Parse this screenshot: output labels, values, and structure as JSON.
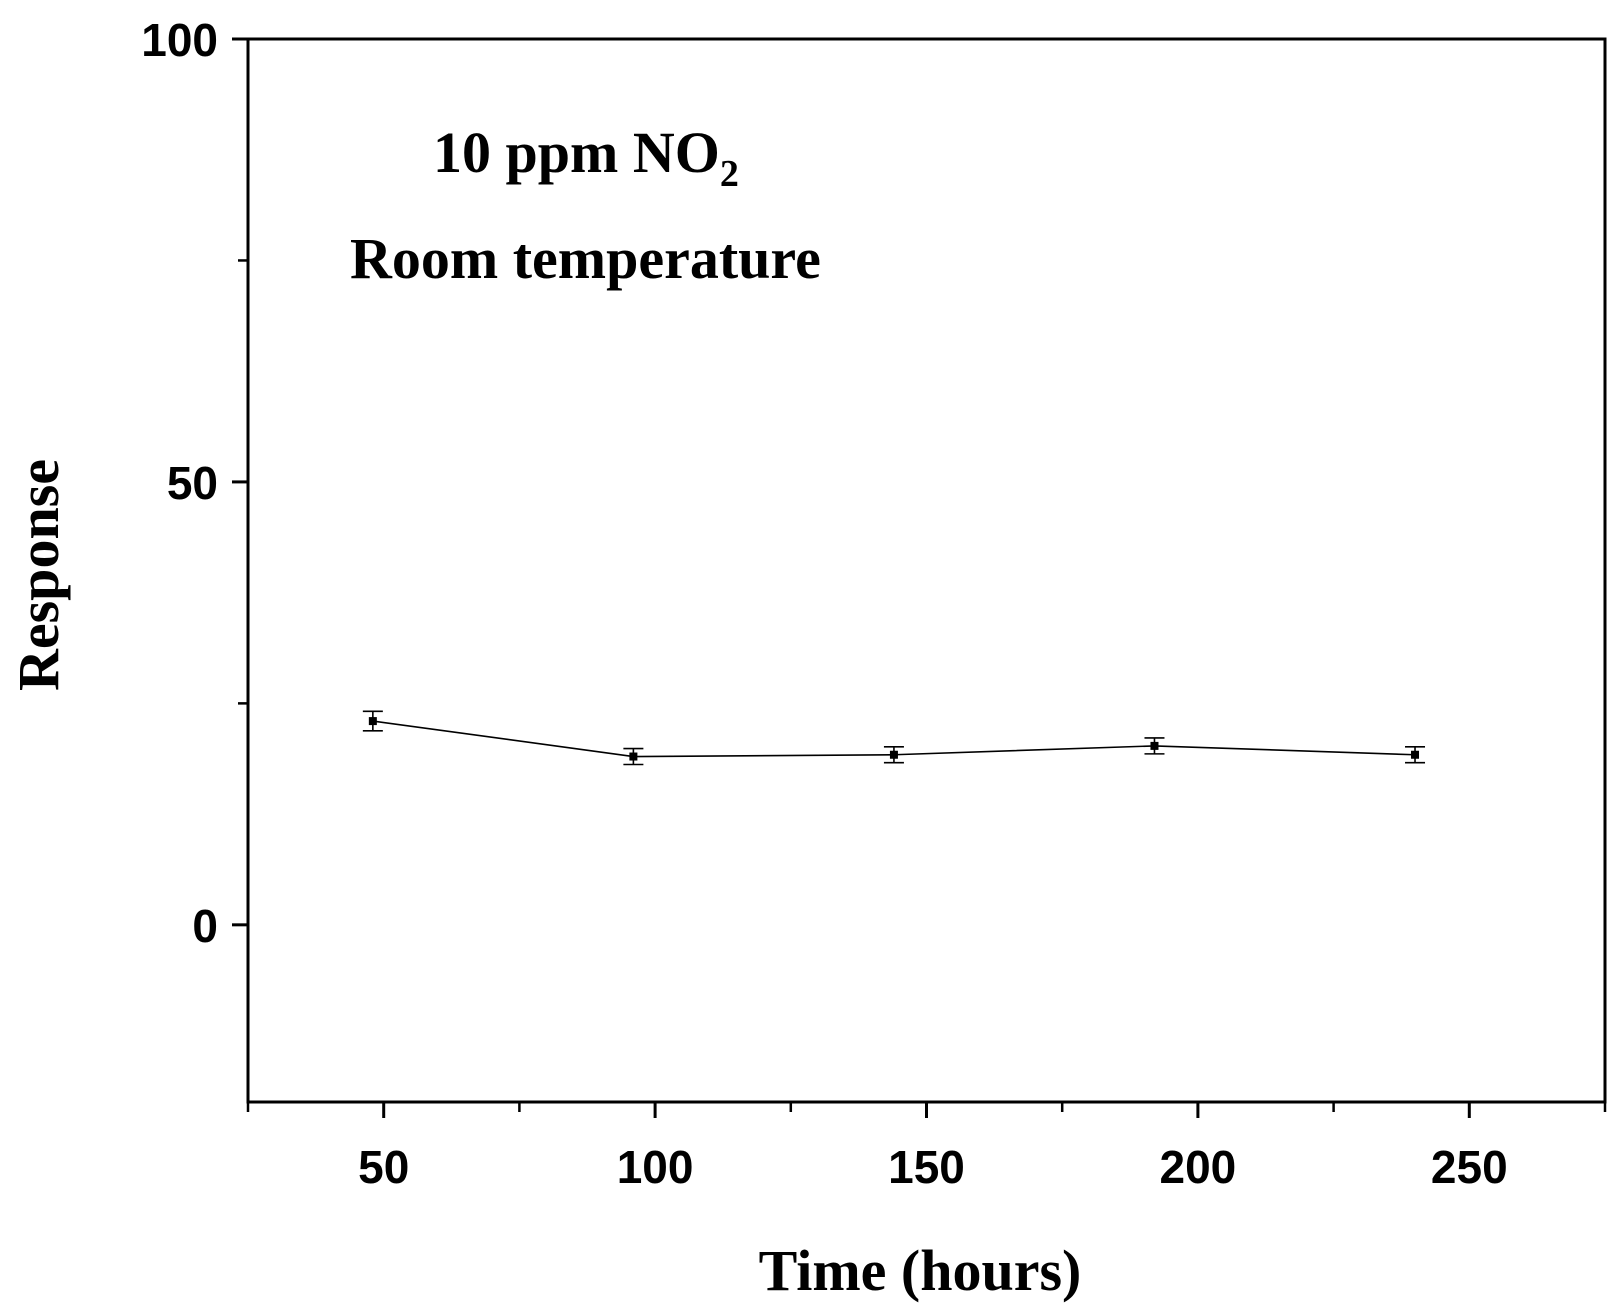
{
  "chart_data": {
    "type": "line",
    "xlabel": "Time (hours)",
    "ylabel": "Response",
    "xlim": [
      25,
      275
    ],
    "ylim": [
      -20,
      100
    ],
    "x_ticks": [
      50,
      100,
      150,
      200,
      250
    ],
    "x_minor_ticks": [
      25,
      75,
      125,
      175,
      225,
      275
    ],
    "y_ticks": [
      0,
      50,
      100
    ],
    "y_minor_ticks": [
      25,
      75
    ],
    "annotations": {
      "line1_main": "10 ppm NO",
      "line1_sub": "2",
      "line2": "Room temperature"
    },
    "series": [
      {
        "x": [
          48,
          96,
          144,
          192,
          240
        ],
        "y": [
          23.0,
          19.0,
          19.2,
          20.2,
          19.2
        ],
        "error": [
          1.1,
          0.9,
          0.9,
          0.9,
          0.9
        ],
        "marker": "square",
        "color": "#000000"
      }
    ],
    "grid": false,
    "legend": "none"
  }
}
